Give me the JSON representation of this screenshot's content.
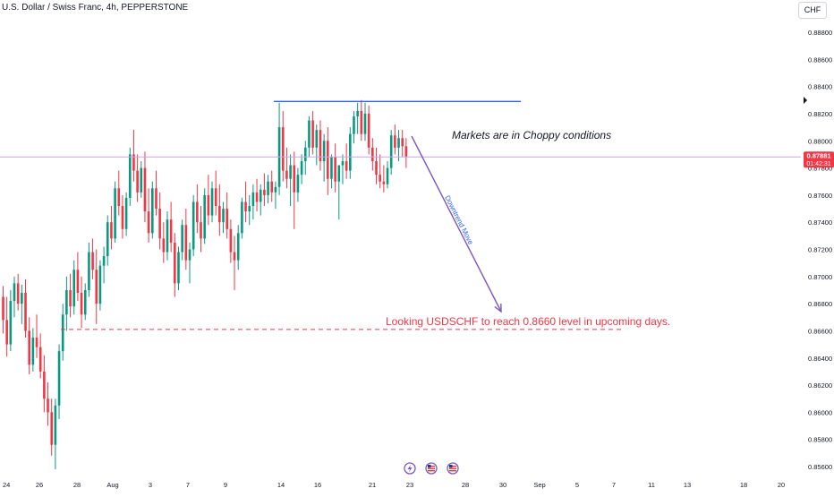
{
  "header": {
    "symbol_title": "U.S. Dollar / Swiss Franc, 4h, PEPPERSTONE",
    "currency": "CHF"
  },
  "price_tag": {
    "price": "0.87881",
    "countdown": "01:42:31",
    "color": "#f23645"
  },
  "colors": {
    "up": "#089981",
    "down": "#f23645",
    "resistance": "#2962ff",
    "current_price_line": "#c9a6e0",
    "arrow": "#7e57c2",
    "target_text": "#f23645"
  },
  "icons": [
    "flash-icon",
    "us-flag-icon",
    "us-flag-icon"
  ],
  "chart_data": {
    "type": "candlestick",
    "x_ticks": [
      "24",
      "26",
      "28",
      "Aug",
      "3",
      "7",
      "9",
      "14",
      "16",
      "21",
      "23",
      "28",
      "30",
      "Sep",
      "5",
      "7",
      "11",
      "13",
      "18",
      "20"
    ],
    "y_ticks": [
      "0.88800",
      "0.88600",
      "0.88400",
      "0.88200",
      "0.88000",
      "0.87800",
      "0.87600",
      "0.87400",
      "0.87200",
      "0.87000",
      "0.86800",
      "0.86600",
      "0.86400",
      "0.86200",
      "0.86000",
      "0.85800",
      "0.85600"
    ],
    "ylim": [
      0.8553,
      0.8897
    ],
    "current_price": 0.87881,
    "levels": {
      "resistance": 0.8829,
      "target": 0.8661
    },
    "annotations": {
      "choppy": "Markets are in Choppy conditions",
      "downtrend": "Downtrend Move",
      "target": "Looking USDSCHF to reach 0.8660 level in upcoming days."
    },
    "candles": [
      {
        "o": 0.8685,
        "h": 0.8693,
        "l": 0.8658,
        "c": 0.8668
      },
      {
        "o": 0.8668,
        "h": 0.8685,
        "l": 0.8641,
        "c": 0.865
      },
      {
        "o": 0.865,
        "h": 0.869,
        "l": 0.8645,
        "c": 0.8682
      },
      {
        "o": 0.8682,
        "h": 0.87,
        "l": 0.867,
        "c": 0.8695
      },
      {
        "o": 0.8695,
        "h": 0.8702,
        "l": 0.8675,
        "c": 0.868
      },
      {
        "o": 0.868,
        "h": 0.8694,
        "l": 0.8665,
        "c": 0.8688
      },
      {
        "o": 0.8688,
        "h": 0.8698,
        "l": 0.8655,
        "c": 0.866
      },
      {
        "o": 0.866,
        "h": 0.867,
        "l": 0.8628,
        "c": 0.8635
      },
      {
        "o": 0.8635,
        "h": 0.8662,
        "l": 0.863,
        "c": 0.8655
      },
      {
        "o": 0.8655,
        "h": 0.8672,
        "l": 0.864,
        "c": 0.8648
      },
      {
        "o": 0.8648,
        "h": 0.8658,
        "l": 0.8625,
        "c": 0.863
      },
      {
        "o": 0.863,
        "h": 0.8642,
        "l": 0.86,
        "c": 0.861
      },
      {
        "o": 0.861,
        "h": 0.8622,
        "l": 0.859,
        "c": 0.86
      },
      {
        "o": 0.86,
        "h": 0.861,
        "l": 0.8568,
        "c": 0.8576
      },
      {
        "o": 0.8576,
        "h": 0.861,
        "l": 0.8558,
        "c": 0.8605
      },
      {
        "o": 0.8605,
        "h": 0.865,
        "l": 0.8595,
        "c": 0.8645
      },
      {
        "o": 0.8645,
        "h": 0.868,
        "l": 0.8638,
        "c": 0.8672
      },
      {
        "o": 0.8672,
        "h": 0.87,
        "l": 0.866,
        "c": 0.869
      },
      {
        "o": 0.869,
        "h": 0.8702,
        "l": 0.867,
        "c": 0.8678
      },
      {
        "o": 0.8678,
        "h": 0.8712,
        "l": 0.8672,
        "c": 0.8705
      },
      {
        "o": 0.8705,
        "h": 0.8718,
        "l": 0.8682,
        "c": 0.8688
      },
      {
        "o": 0.8688,
        "h": 0.87,
        "l": 0.8662,
        "c": 0.8672
      },
      {
        "o": 0.8672,
        "h": 0.8695,
        "l": 0.8668,
        "c": 0.869
      },
      {
        "o": 0.869,
        "h": 0.8725,
        "l": 0.8685,
        "c": 0.8718
      },
      {
        "o": 0.8718,
        "h": 0.8728,
        "l": 0.8698,
        "c": 0.8705
      },
      {
        "o": 0.8705,
        "h": 0.872,
        "l": 0.8665,
        "c": 0.868
      },
      {
        "o": 0.868,
        "h": 0.8712,
        "l": 0.8675,
        "c": 0.8708
      },
      {
        "o": 0.8708,
        "h": 0.8722,
        "l": 0.8695,
        "c": 0.8715
      },
      {
        "o": 0.8715,
        "h": 0.8745,
        "l": 0.8708,
        "c": 0.874
      },
      {
        "o": 0.874,
        "h": 0.8752,
        "l": 0.872,
        "c": 0.8728
      },
      {
        "o": 0.8728,
        "h": 0.877,
        "l": 0.8725,
        "c": 0.8765
      },
      {
        "o": 0.8765,
        "h": 0.8778,
        "l": 0.8745,
        "c": 0.8752
      },
      {
        "o": 0.8752,
        "h": 0.876,
        "l": 0.8728,
        "c": 0.8735
      },
      {
        "o": 0.8735,
        "h": 0.8762,
        "l": 0.873,
        "c": 0.8758
      },
      {
        "o": 0.8758,
        "h": 0.8795,
        "l": 0.8752,
        "c": 0.879
      },
      {
        "o": 0.879,
        "h": 0.8808,
        "l": 0.877,
        "c": 0.8778
      },
      {
        "o": 0.8778,
        "h": 0.879,
        "l": 0.8755,
        "c": 0.8762
      },
      {
        "o": 0.8762,
        "h": 0.8785,
        "l": 0.8758,
        "c": 0.878
      },
      {
        "o": 0.878,
        "h": 0.8792,
        "l": 0.874,
        "c": 0.8748
      },
      {
        "o": 0.8748,
        "h": 0.8765,
        "l": 0.8725,
        "c": 0.8732
      },
      {
        "o": 0.8732,
        "h": 0.877,
        "l": 0.8728,
        "c": 0.8765
      },
      {
        "o": 0.8765,
        "h": 0.8778,
        "l": 0.8745,
        "c": 0.875
      },
      {
        "o": 0.875,
        "h": 0.8762,
        "l": 0.872,
        "c": 0.8728
      },
      {
        "o": 0.8728,
        "h": 0.874,
        "l": 0.871,
        "c": 0.8718
      },
      {
        "o": 0.8718,
        "h": 0.8748,
        "l": 0.8712,
        "c": 0.8742
      },
      {
        "o": 0.8742,
        "h": 0.8755,
        "l": 0.8718,
        "c": 0.8725
      },
      {
        "o": 0.8725,
        "h": 0.8732,
        "l": 0.8685,
        "c": 0.8695
      },
      {
        "o": 0.8695,
        "h": 0.8722,
        "l": 0.869,
        "c": 0.8718
      },
      {
        "o": 0.8718,
        "h": 0.8742,
        "l": 0.8712,
        "c": 0.8738
      },
      {
        "o": 0.8738,
        "h": 0.875,
        "l": 0.8705,
        "c": 0.8712
      },
      {
        "o": 0.8712,
        "h": 0.8725,
        "l": 0.8695,
        "c": 0.872
      },
      {
        "o": 0.872,
        "h": 0.876,
        "l": 0.8715,
        "c": 0.8755
      },
      {
        "o": 0.8755,
        "h": 0.8768,
        "l": 0.8732,
        "c": 0.874
      },
      {
        "o": 0.874,
        "h": 0.8752,
        "l": 0.8718,
        "c": 0.8728
      },
      {
        "o": 0.8728,
        "h": 0.8765,
        "l": 0.8724,
        "c": 0.876
      },
      {
        "o": 0.876,
        "h": 0.8775,
        "l": 0.8738,
        "c": 0.8745
      },
      {
        "o": 0.8745,
        "h": 0.877,
        "l": 0.874,
        "c": 0.8765
      },
      {
        "o": 0.8765,
        "h": 0.8778,
        "l": 0.8745,
        "c": 0.8752
      },
      {
        "o": 0.8752,
        "h": 0.8768,
        "l": 0.873,
        "c": 0.874
      },
      {
        "o": 0.874,
        "h": 0.8755,
        "l": 0.8732,
        "c": 0.875
      },
      {
        "o": 0.875,
        "h": 0.8762,
        "l": 0.8728,
        "c": 0.8735
      },
      {
        "o": 0.8735,
        "h": 0.8742,
        "l": 0.871,
        "c": 0.8718
      },
      {
        "o": 0.8718,
        "h": 0.873,
        "l": 0.869,
        "c": 0.8712
      },
      {
        "o": 0.8712,
        "h": 0.8738,
        "l": 0.8705,
        "c": 0.8732
      },
      {
        "o": 0.8732,
        "h": 0.8758,
        "l": 0.8728,
        "c": 0.8755
      },
      {
        "o": 0.8755,
        "h": 0.877,
        "l": 0.874,
        "c": 0.8748
      },
      {
        "o": 0.8748,
        "h": 0.876,
        "l": 0.8738,
        "c": 0.8752
      },
      {
        "o": 0.8752,
        "h": 0.8768,
        "l": 0.8742,
        "c": 0.8762
      },
      {
        "o": 0.8762,
        "h": 0.8772,
        "l": 0.8748,
        "c": 0.8755
      },
      {
        "o": 0.8755,
        "h": 0.8768,
        "l": 0.8745,
        "c": 0.8764
      },
      {
        "o": 0.8764,
        "h": 0.8776,
        "l": 0.8752,
        "c": 0.876
      },
      {
        "o": 0.876,
        "h": 0.8775,
        "l": 0.8754,
        "c": 0.877
      },
      {
        "o": 0.877,
        "h": 0.8778,
        "l": 0.8755,
        "c": 0.8762
      },
      {
        "o": 0.8762,
        "h": 0.877,
        "l": 0.875,
        "c": 0.8766
      },
      {
        "o": 0.8766,
        "h": 0.8828,
        "l": 0.876,
        "c": 0.881
      },
      {
        "o": 0.881,
        "h": 0.8822,
        "l": 0.877,
        "c": 0.8778
      },
      {
        "o": 0.8778,
        "h": 0.8795,
        "l": 0.8765,
        "c": 0.8772
      },
      {
        "o": 0.8772,
        "h": 0.879,
        "l": 0.8752,
        "c": 0.8782
      },
      {
        "o": 0.8782,
        "h": 0.8792,
        "l": 0.8735,
        "c": 0.8762
      },
      {
        "o": 0.8762,
        "h": 0.878,
        "l": 0.8755,
        "c": 0.8775
      },
      {
        "o": 0.8775,
        "h": 0.879,
        "l": 0.8768,
        "c": 0.8785
      },
      {
        "o": 0.8785,
        "h": 0.88,
        "l": 0.8775,
        "c": 0.8795
      },
      {
        "o": 0.8795,
        "h": 0.8818,
        "l": 0.8788,
        "c": 0.8815
      },
      {
        "o": 0.8815,
        "h": 0.8822,
        "l": 0.879,
        "c": 0.8795
      },
      {
        "o": 0.8795,
        "h": 0.8812,
        "l": 0.8782,
        "c": 0.8808
      },
      {
        "o": 0.8808,
        "h": 0.8815,
        "l": 0.8778,
        "c": 0.8785
      },
      {
        "o": 0.8785,
        "h": 0.8805,
        "l": 0.877,
        "c": 0.88
      },
      {
        "o": 0.88,
        "h": 0.881,
        "l": 0.876,
        "c": 0.8772
      },
      {
        "o": 0.8772,
        "h": 0.879,
        "l": 0.8765,
        "c": 0.8788
      },
      {
        "o": 0.8788,
        "h": 0.8798,
        "l": 0.8762,
        "c": 0.877
      },
      {
        "o": 0.877,
        "h": 0.8782,
        "l": 0.8742,
        "c": 0.8782
      },
      {
        "o": 0.8782,
        "h": 0.879,
        "l": 0.8768,
        "c": 0.8785
      },
      {
        "o": 0.8785,
        "h": 0.8798,
        "l": 0.8772,
        "c": 0.8778
      },
      {
        "o": 0.8778,
        "h": 0.881,
        "l": 0.8772,
        "c": 0.8805
      },
      {
        "o": 0.8805,
        "h": 0.8822,
        "l": 0.8798,
        "c": 0.8818
      },
      {
        "o": 0.8818,
        "h": 0.8828,
        "l": 0.8805,
        "c": 0.8822
      },
      {
        "o": 0.8822,
        "h": 0.883,
        "l": 0.88,
        "c": 0.8805
      },
      {
        "o": 0.8805,
        "h": 0.8828,
        "l": 0.88,
        "c": 0.882
      },
      {
        "o": 0.882,
        "h": 0.8826,
        "l": 0.879,
        "c": 0.8795
      },
      {
        "o": 0.8795,
        "h": 0.8802,
        "l": 0.8778,
        "c": 0.8785
      },
      {
        "o": 0.8785,
        "h": 0.8795,
        "l": 0.8768,
        "c": 0.8775
      },
      {
        "o": 0.8775,
        "h": 0.879,
        "l": 0.8765,
        "c": 0.877
      },
      {
        "o": 0.877,
        "h": 0.8782,
        "l": 0.8762,
        "c": 0.8768
      },
      {
        "o": 0.8768,
        "h": 0.8785,
        "l": 0.8765,
        "c": 0.878
      },
      {
        "o": 0.878,
        "h": 0.8808,
        "l": 0.8775,
        "c": 0.8804
      },
      {
        "o": 0.8804,
        "h": 0.8812,
        "l": 0.879,
        "c": 0.8795
      },
      {
        "o": 0.8795,
        "h": 0.8808,
        "l": 0.8785,
        "c": 0.8802
      },
      {
        "o": 0.8802,
        "h": 0.8808,
        "l": 0.8788,
        "c": 0.8796
      },
      {
        "o": 0.8796,
        "h": 0.8802,
        "l": 0.878,
        "c": 0.8788
      }
    ]
  }
}
